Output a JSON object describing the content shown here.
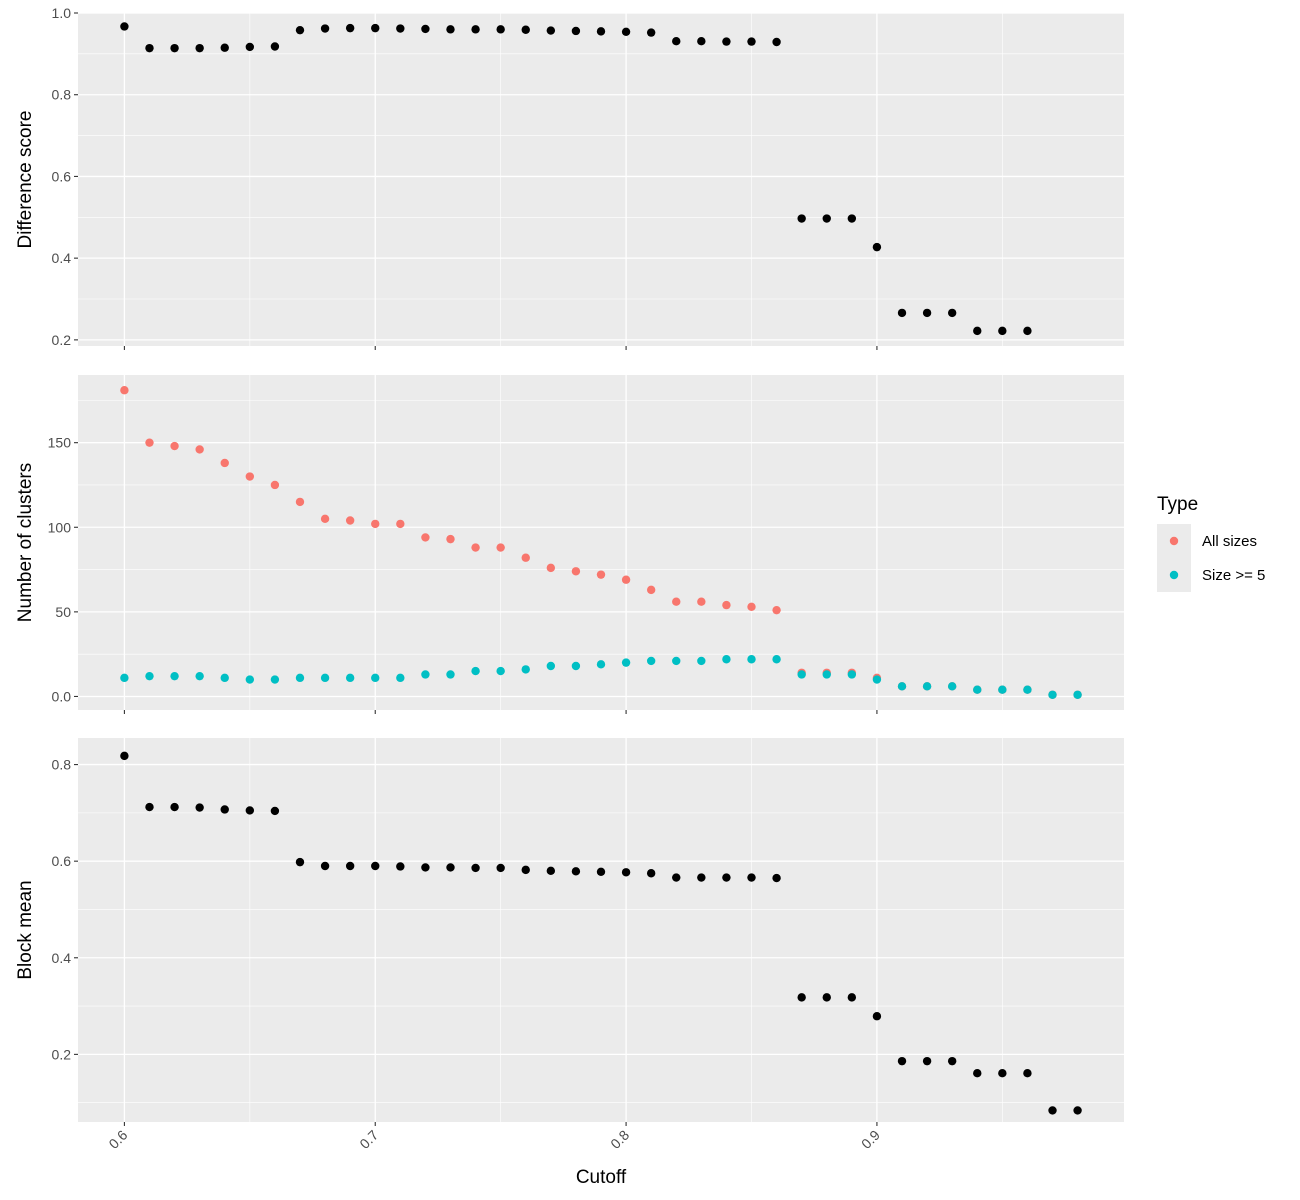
{
  "chart_data": {
    "type": "scatter",
    "xlabel": "Cutoff",
    "x_ticks": [
      0.6,
      0.7,
      0.8,
      0.9
    ],
    "xlim": [
      0.5815,
      0.9985
    ],
    "panels": [
      {
        "ylabel": "Difference score",
        "ylim": [
          0.185,
          1.0
        ],
        "y_ticks": [
          0.2,
          0.4,
          0.6,
          0.8,
          1.0
        ],
        "y_minor": [
          0.3,
          0.5,
          0.7,
          0.9
        ],
        "series": [
          {
            "color": "#000000",
            "x": [
              0.6,
              0.61,
              0.62,
              0.63,
              0.64,
              0.65,
              0.66,
              0.67,
              0.68,
              0.69,
              0.7,
              0.71,
              0.72,
              0.73,
              0.74,
              0.75,
              0.76,
              0.77,
              0.78,
              0.79,
              0.8,
              0.81,
              0.82,
              0.83,
              0.84,
              0.85,
              0.86,
              0.87,
              0.88,
              0.89,
              0.9,
              0.91,
              0.92,
              0.93,
              0.94,
              0.95,
              0.96
            ],
            "y": [
              0.967,
              0.914,
              0.914,
              0.914,
              0.915,
              0.917,
              0.918,
              0.958,
              0.962,
              0.963,
              0.963,
              0.962,
              0.961,
              0.96,
              0.96,
              0.96,
              0.959,
              0.957,
              0.956,
              0.955,
              0.954,
              0.952,
              0.931,
              0.931,
              0.93,
              0.93,
              0.929,
              0.497,
              0.497,
              0.497,
              0.427,
              0.266,
              0.266,
              0.266,
              0.222,
              0.222,
              0.222
            ]
          }
        ]
      },
      {
        "ylabel": "Number of clusters",
        "ylim": [
          -8,
          190
        ],
        "y_ticks": [
          0,
          50,
          100,
          150
        ],
        "y_minor": [
          25,
          75,
          125,
          175
        ],
        "series": [
          {
            "name": "All sizes",
            "color": "#F8766D",
            "x": [
              0.6,
              0.61,
              0.62,
              0.63,
              0.64,
              0.65,
              0.66,
              0.67,
              0.68,
              0.69,
              0.7,
              0.71,
              0.72,
              0.73,
              0.74,
              0.75,
              0.76,
              0.77,
              0.78,
              0.79,
              0.8,
              0.81,
              0.82,
              0.83,
              0.84,
              0.85,
              0.86,
              0.87,
              0.88,
              0.89,
              0.9,
              0.91,
              0.92,
              0.93,
              0.94,
              0.95,
              0.96,
              0.97,
              0.98
            ],
            "y": [
              181,
              150,
              148,
              146,
              138,
              130,
              125,
              115,
              105,
              104,
              102,
              102,
              94,
              93,
              88,
              88,
              82,
              76,
              74,
              72,
              69,
              63,
              56,
              56,
              54,
              53,
              51,
              14,
              14,
              14,
              11,
              6,
              6,
              6,
              4,
              4,
              4,
              1,
              1
            ]
          },
          {
            "name": "Size >= 5",
            "color": "#00BFC4",
            "x": [
              0.6,
              0.61,
              0.62,
              0.63,
              0.64,
              0.65,
              0.66,
              0.67,
              0.68,
              0.69,
              0.7,
              0.71,
              0.72,
              0.73,
              0.74,
              0.75,
              0.76,
              0.77,
              0.78,
              0.79,
              0.8,
              0.81,
              0.82,
              0.83,
              0.84,
              0.85,
              0.86,
              0.87,
              0.88,
              0.89,
              0.9,
              0.91,
              0.92,
              0.93,
              0.94,
              0.95,
              0.96,
              0.97,
              0.98
            ],
            "y": [
              11,
              12,
              12,
              12,
              11,
              10,
              10,
              11,
              11,
              11,
              11,
              11,
              13,
              13,
              15,
              15,
              16,
              18,
              18,
              19,
              20,
              21,
              21,
              21,
              22,
              22,
              22,
              13,
              13,
              13,
              10,
              6,
              6,
              6,
              4,
              4,
              4,
              1,
              1
            ]
          }
        ]
      },
      {
        "ylabel": "Block mean",
        "ylim": [
          0.06,
          0.855
        ],
        "y_ticks": [
          0.2,
          0.4,
          0.6,
          0.8
        ],
        "y_minor": [
          0.1,
          0.3,
          0.5,
          0.7
        ],
        "series": [
          {
            "color": "#000000",
            "x": [
              0.6,
              0.61,
              0.62,
              0.63,
              0.64,
              0.65,
              0.66,
              0.67,
              0.68,
              0.69,
              0.7,
              0.71,
              0.72,
              0.73,
              0.74,
              0.75,
              0.76,
              0.77,
              0.78,
              0.79,
              0.8,
              0.81,
              0.82,
              0.83,
              0.84,
              0.85,
              0.86,
              0.87,
              0.88,
              0.89,
              0.9,
              0.91,
              0.92,
              0.93,
              0.94,
              0.95,
              0.96,
              0.97,
              0.98
            ],
            "y": [
              0.818,
              0.712,
              0.712,
              0.711,
              0.707,
              0.705,
              0.704,
              0.598,
              0.59,
              0.59,
              0.59,
              0.589,
              0.587,
              0.587,
              0.586,
              0.586,
              0.582,
              0.58,
              0.579,
              0.578,
              0.577,
              0.575,
              0.566,
              0.566,
              0.566,
              0.566,
              0.565,
              0.318,
              0.318,
              0.318,
              0.279,
              0.186,
              0.186,
              0.186,
              0.161,
              0.161,
              0.161,
              0.084,
              0.084
            ]
          }
        ]
      }
    ],
    "legend": {
      "title": "Type",
      "position": "right",
      "entries": [
        {
          "label": "All sizes",
          "color": "#F8766D"
        },
        {
          "label": "Size >= 5",
          "color": "#00BFC4"
        }
      ]
    }
  }
}
